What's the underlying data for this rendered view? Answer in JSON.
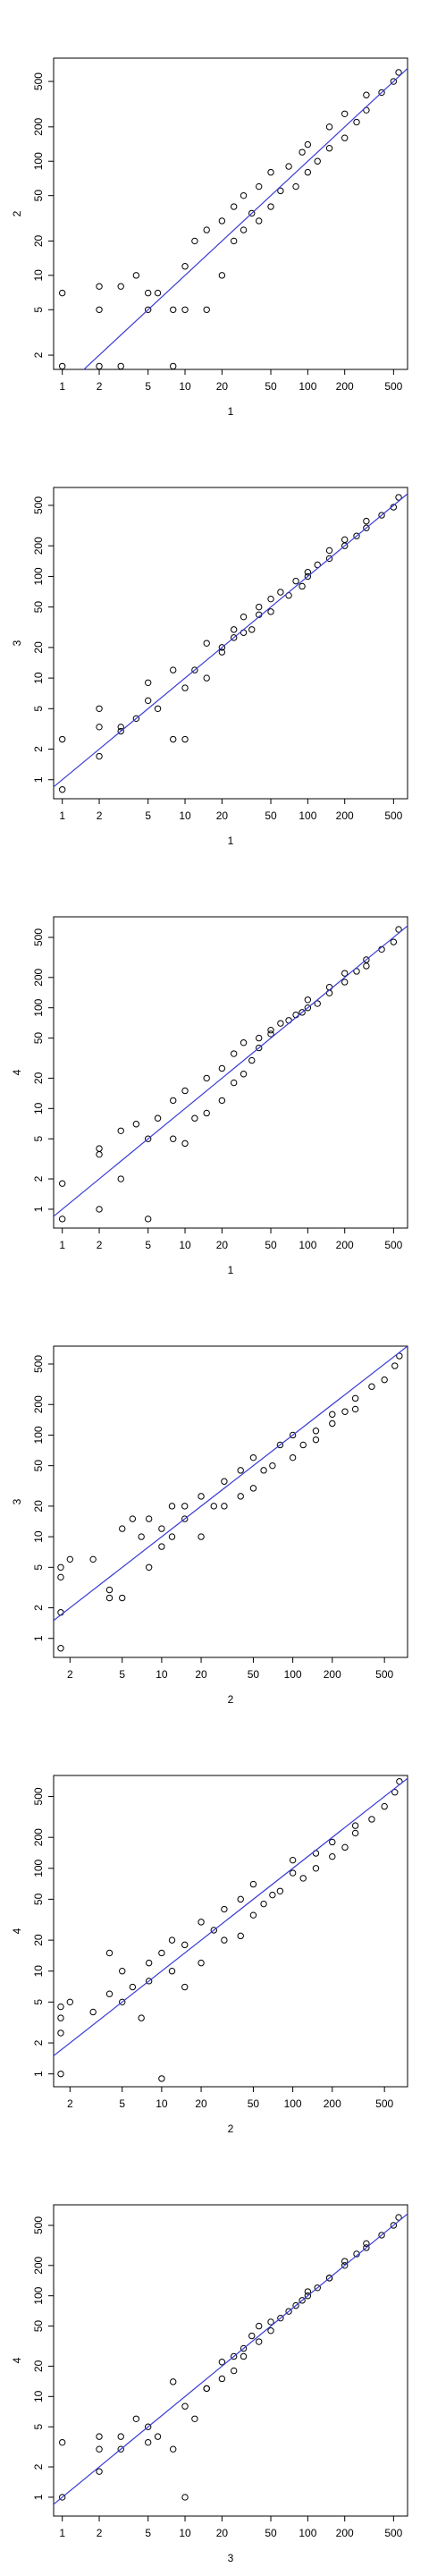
{
  "chart_data": [
    {
      "type": "scatter",
      "xlabel": "1",
      "ylabel": "2",
      "log_x": true,
      "log_y": true,
      "point_color": "#000000",
      "xlim": [
        0.85,
        650
      ],
      "ylim": [
        1.5,
        800
      ],
      "xticks": [
        1,
        2,
        5,
        10,
        20,
        50,
        100,
        200,
        500
      ],
      "yticks": [
        2,
        5,
        10,
        20,
        50,
        100,
        200,
        500
      ],
      "fit_line": {
        "intercept": 0,
        "slope": 1,
        "color": "#3b3bd6"
      },
      "x": [
        1,
        1,
        2,
        2,
        2,
        3,
        3,
        4,
        5,
        5,
        6,
        8,
        8,
        10,
        10,
        12,
        15,
        15,
        20,
        20,
        25,
        25,
        30,
        30,
        35,
        40,
        40,
        50,
        50,
        60,
        70,
        80,
        90,
        100,
        100,
        120,
        150,
        150,
        200,
        200,
        250,
        300,
        300,
        400,
        500,
        550
      ],
      "values": [
        1.6,
        7,
        1.6,
        5,
        8,
        1.6,
        8,
        10,
        5,
        7,
        7,
        1.6,
        5,
        5,
        12,
        20,
        5,
        25,
        10,
        30,
        20,
        40,
        25,
        50,
        35,
        30,
        60,
        40,
        80,
        55,
        90,
        60,
        120,
        80,
        140,
        100,
        130,
        200,
        160,
        260,
        220,
        280,
        380,
        400,
        500,
        600
      ]
    },
    {
      "type": "scatter",
      "xlabel": "1",
      "ylabel": "3",
      "log_x": true,
      "log_y": true,
      "point_color": "#000000",
      "xlim": [
        0.85,
        650
      ],
      "ylim": [
        0.65,
        750
      ],
      "xticks": [
        1,
        2,
        5,
        10,
        20,
        50,
        100,
        200,
        500
      ],
      "yticks": [
        1,
        2,
        5,
        10,
        20,
        50,
        100,
        200,
        500
      ],
      "fit_line": {
        "intercept": 0,
        "slope": 1,
        "color": "#3b3bd6"
      },
      "x": [
        1,
        1,
        2,
        2,
        2,
        3,
        3,
        4,
        5,
        5,
        6,
        8,
        8,
        10,
        10,
        12,
        15,
        15,
        20,
        20,
        25,
        25,
        30,
        30,
        35,
        40,
        40,
        50,
        50,
        60,
        70,
        80,
        90,
        100,
        100,
        120,
        150,
        150,
        200,
        200,
        250,
        300,
        300,
        400,
        500,
        550
      ],
      "values": [
        0.8,
        2.5,
        1.7,
        3.3,
        5,
        3,
        3.3,
        4,
        9,
        6,
        5,
        12,
        2.5,
        8,
        2.5,
        12,
        10,
        22,
        18,
        20,
        25,
        30,
        28,
        40,
        30,
        42,
        50,
        45,
        60,
        70,
        65,
        90,
        80,
        110,
        100,
        130,
        150,
        180,
        200,
        230,
        250,
        300,
        350,
        400,
        480,
        600
      ]
    },
    {
      "type": "scatter",
      "xlabel": "1",
      "ylabel": "4",
      "log_x": true,
      "log_y": true,
      "point_color": "#000000",
      "xlim": [
        0.85,
        650
      ],
      "ylim": [
        0.65,
        800
      ],
      "xticks": [
        1,
        2,
        5,
        10,
        20,
        50,
        100,
        200,
        500
      ],
      "yticks": [
        1,
        2,
        5,
        10,
        20,
        50,
        100,
        200,
        500
      ],
      "fit_line": {
        "intercept": 0,
        "slope": 1,
        "color": "#3b3bd6"
      },
      "x": [
        1,
        1,
        2,
        2,
        2,
        3,
        3,
        4,
        5,
        5,
        6,
        8,
        8,
        10,
        10,
        12,
        15,
        15,
        20,
        20,
        25,
        25,
        30,
        30,
        35,
        40,
        40,
        50,
        50,
        60,
        70,
        80,
        90,
        100,
        100,
        120,
        150,
        150,
        200,
        200,
        250,
        300,
        300,
        400,
        500,
        550
      ],
      "values": [
        0.8,
        1.8,
        1,
        4,
        3.5,
        2,
        6,
        7,
        0.8,
        5,
        8,
        12,
        5,
        4.5,
        15,
        8,
        9,
        20,
        12,
        25,
        18,
        35,
        22,
        45,
        30,
        50,
        40,
        60,
        55,
        70,
        75,
        85,
        90,
        100,
        120,
        110,
        140,
        160,
        180,
        220,
        230,
        260,
        300,
        380,
        450,
        600
      ]
    },
    {
      "type": "scatter",
      "xlabel": "2",
      "ylabel": "3",
      "log_x": true,
      "log_y": true,
      "point_color": "#000000",
      "xlim": [
        1.5,
        750
      ],
      "ylim": [
        0.65,
        750
      ],
      "xticks": [
        2,
        5,
        10,
        20,
        50,
        100,
        200,
        500
      ],
      "yticks": [
        1,
        2,
        5,
        10,
        20,
        50,
        100,
        200,
        500
      ],
      "fit_line": {
        "intercept": 0,
        "slope": 1,
        "color": "#3b3bd6"
      },
      "x": [
        1.7,
        1.7,
        1.7,
        1.7,
        2,
        3,
        4,
        4,
        5,
        5,
        6,
        7,
        8,
        8,
        10,
        10,
        12,
        12,
        15,
        15,
        20,
        20,
        25,
        30,
        30,
        40,
        40,
        50,
        50,
        60,
        70,
        80,
        100,
        100,
        120,
        150,
        150,
        200,
        200,
        250,
        300,
        300,
        400,
        500,
        600,
        650
      ],
      "values": [
        0.8,
        1.8,
        4,
        5,
        6,
        6,
        2.5,
        3,
        2.5,
        12,
        15,
        10,
        5,
        15,
        8,
        12,
        20,
        10,
        15,
        20,
        10,
        25,
        20,
        20,
        35,
        25,
        45,
        30,
        60,
        45,
        50,
        80,
        60,
        100,
        80,
        110,
        90,
        130,
        160,
        170,
        230,
        180,
        300,
        350,
        480,
        600
      ]
    },
    {
      "type": "scatter",
      "xlabel": "2",
      "ylabel": "4",
      "log_x": true,
      "log_y": true,
      "point_color": "#000000",
      "xlim": [
        1.5,
        750
      ],
      "ylim": [
        0.75,
        800
      ],
      "xticks": [
        2,
        5,
        10,
        20,
        50,
        100,
        200,
        500
      ],
      "yticks": [
        1,
        2,
        5,
        10,
        20,
        50,
        100,
        200,
        500
      ],
      "fit_line": {
        "intercept": 0,
        "slope": 1,
        "color": "#3b3bd6"
      },
      "x": [
        1.7,
        1.7,
        1.7,
        1.7,
        2,
        3,
        4,
        4,
        5,
        5,
        6,
        7,
        8,
        8,
        10,
        10,
        12,
        12,
        15,
        15,
        20,
        20,
        25,
        30,
        30,
        40,
        40,
        50,
        50,
        60,
        70,
        80,
        100,
        100,
        120,
        150,
        150,
        200,
        200,
        250,
        300,
        300,
        400,
        500,
        600,
        650
      ],
      "values": [
        1,
        2.5,
        3.5,
        4.5,
        5,
        4,
        6,
        15,
        10,
        5,
        7,
        3.5,
        12,
        8,
        0.9,
        15,
        10,
        20,
        7,
        18,
        12,
        30,
        25,
        20,
        40,
        22,
        50,
        35,
        70,
        45,
        55,
        60,
        90,
        120,
        80,
        100,
        140,
        130,
        180,
        160,
        220,
        260,
        300,
        400,
        550,
        700
      ]
    },
    {
      "type": "scatter",
      "xlabel": "3",
      "ylabel": "4",
      "log_x": true,
      "log_y": true,
      "point_color": "#000000",
      "xlim": [
        0.85,
        650
      ],
      "ylim": [
        0.65,
        800
      ],
      "xticks": [
        1,
        2,
        5,
        10,
        20,
        50,
        100,
        200,
        500
      ],
      "yticks": [
        1,
        2,
        5,
        10,
        20,
        50,
        100,
        200,
        500
      ],
      "fit_line": {
        "intercept": 0,
        "slope": 1,
        "color": "#3b3bd6"
      },
      "x": [
        1,
        1,
        2,
        2,
        2,
        3,
        3,
        4,
        5,
        5,
        6,
        8,
        8,
        10,
        10,
        12,
        15,
        15,
        20,
        20,
        25,
        25,
        30,
        30,
        35,
        40,
        40,
        50,
        50,
        60,
        70,
        80,
        90,
        100,
        100,
        120,
        150,
        150,
        200,
        200,
        250,
        300,
        300,
        400,
        500,
        550
      ],
      "values": [
        1,
        3.5,
        1.8,
        4,
        3,
        4,
        3,
        6,
        5,
        3.5,
        4,
        14,
        3,
        8,
        1,
        6,
        12,
        12,
        15,
        22,
        18,
        25,
        25,
        30,
        40,
        35,
        50,
        45,
        55,
        60,
        70,
        80,
        90,
        100,
        110,
        120,
        150,
        150,
        200,
        220,
        260,
        300,
        330,
        400,
        500,
        600
      ]
    }
  ]
}
